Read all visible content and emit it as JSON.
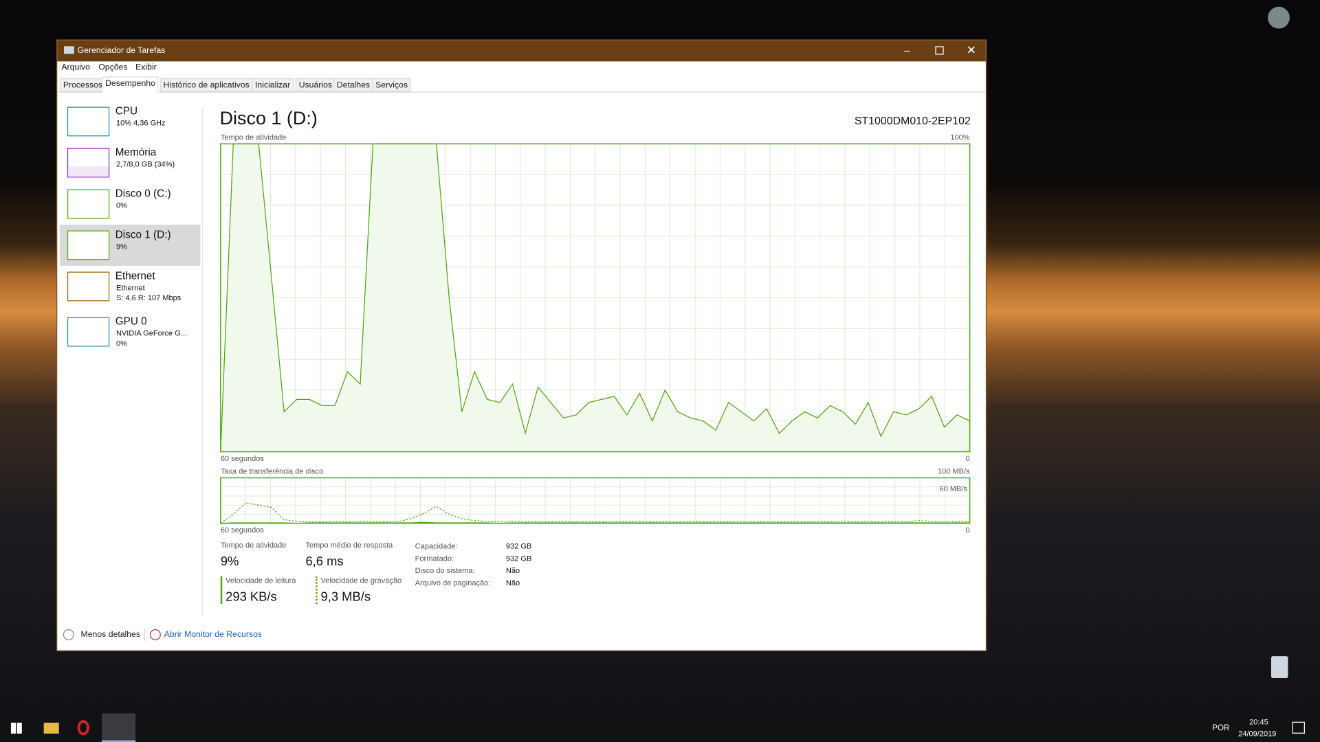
{
  "window": {
    "title": "Gerenciador de Tarefas"
  },
  "menu": [
    "Arquivo",
    "Opções",
    "Exibir"
  ],
  "tabs": [
    "Processos",
    "Desempenho",
    "Histórico de aplicativos",
    "Inicializar",
    "Usuários",
    "Detalhes",
    "Serviços"
  ],
  "sidebar": [
    {
      "name": "CPU",
      "detail": "10% 4,36 GHz"
    },
    {
      "name": "Memória",
      "detail": "2,7/8,0 GB (34%)"
    },
    {
      "name": "Disco 0 (C:)",
      "detail": "0%"
    },
    {
      "name": "Disco 1 (D:)",
      "detail": "9%"
    },
    {
      "name": "Ethernet",
      "detail": "Ethernet",
      "detail2": "S: 4,6 R: 107 Mbps"
    },
    {
      "name": "GPU 0",
      "detail": "NVIDIA GeForce G...",
      "detail2": "0%"
    }
  ],
  "panel": {
    "title": "Disco 1 (D:)",
    "model": "ST1000DM010-2EP102",
    "activity_chart": {
      "type": "area",
      "label": "Tempo de atividade",
      "max_label": "100%",
      "x_left": "60 segundos",
      "x_right": "0",
      "ylim": [
        0,
        100
      ],
      "values": [
        0,
        100,
        100,
        100,
        57,
        13,
        17,
        17,
        15,
        15,
        26,
        22,
        100,
        100,
        100,
        100,
        100,
        100,
        50,
        13,
        26,
        17,
        16,
        22,
        6,
        21,
        16,
        11,
        12,
        16,
        17,
        18,
        12,
        19,
        10,
        20,
        13,
        11,
        10,
        7,
        16,
        13,
        10,
        14,
        6,
        10,
        13,
        11,
        15,
        13,
        9,
        16,
        5,
        13,
        12,
        14,
        18,
        8,
        12,
        10
      ]
    },
    "transfer_chart": {
      "type": "line",
      "label": "Taxa de transferência de disco",
      "max_label": "100 MB/s",
      "inner_label": "60 MB/s",
      "x_left": "60 segundos",
      "x_right": "0",
      "ylim": [
        0,
        100
      ],
      "read": [
        0,
        1,
        1,
        1,
        1,
        1,
        0,
        1,
        1,
        1,
        1,
        1,
        1,
        1,
        1,
        1,
        2,
        1,
        1,
        1,
        1,
        1,
        0,
        1,
        1,
        1,
        1,
        1,
        1,
        1,
        1,
        1,
        1,
        1,
        1,
        1,
        1,
        1,
        1,
        1,
        1,
        1,
        1,
        1,
        1,
        1,
        1,
        1,
        1,
        1,
        1,
        1,
        1,
        1,
        1,
        1,
        1,
        1,
        1,
        1
      ],
      "write": [
        0,
        20,
        45,
        40,
        35,
        8,
        4,
        3,
        3,
        4,
        3,
        5,
        3,
        3,
        4,
        10,
        22,
        37,
        20,
        10,
        6,
        4,
        3,
        5,
        3,
        4,
        3,
        4,
        3,
        4,
        3,
        4,
        3,
        5,
        3,
        4,
        3,
        4,
        3,
        4,
        3,
        5,
        3,
        4,
        3,
        4,
        3,
        4,
        3,
        5,
        3,
        4,
        3,
        4,
        3,
        6,
        4,
        4,
        3,
        4
      ]
    },
    "stats": [
      {
        "label": "Tempo de atividade",
        "value": "9%"
      },
      {
        "label": "Tempo médio de resposta",
        "value": "6,6 ms"
      }
    ],
    "speeds": [
      {
        "label": "Velocidade de leitura",
        "value": "293 KB/s"
      },
      {
        "label": "Velocidade de gravação",
        "value": "9,3 MB/s"
      }
    ],
    "properties": [
      [
        "Capacidade:",
        "932 GB"
      ],
      [
        "Formatado:",
        "932 GB"
      ],
      [
        "Disco do sistema:",
        "Não"
      ],
      [
        "Arquivo de paginação:",
        "Não"
      ]
    ]
  },
  "footer": {
    "less": "Menos detalhes",
    "monitor": "Abrir Monitor de Recursos"
  },
  "taskbar": {
    "language": "POR",
    "time": "20:45",
    "date": "24/09/2019"
  }
}
